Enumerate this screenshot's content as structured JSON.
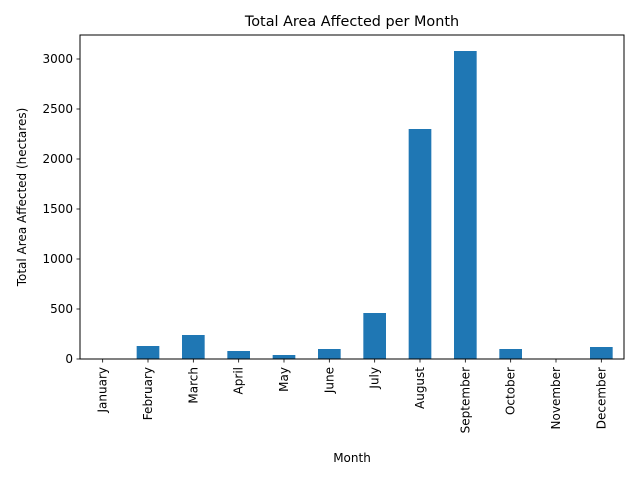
{
  "chart_data": {
    "type": "bar",
    "title": "Total Area Affected per Month",
    "xlabel": "Month",
    "ylabel": "Total Area Affected (hectares)",
    "categories": [
      "January",
      "February",
      "March",
      "April",
      "May",
      "June",
      "July",
      "August",
      "September",
      "October",
      "November",
      "December"
    ],
    "values": [
      0,
      130,
      240,
      80,
      40,
      100,
      460,
      2300,
      3080,
      100,
      0,
      120
    ],
    "ylim": [
      0,
      3240
    ],
    "yticks": [
      0,
      500,
      1000,
      1500,
      2000,
      2500,
      3000
    ],
    "grid": false,
    "bar_color": "#1f77b4"
  }
}
